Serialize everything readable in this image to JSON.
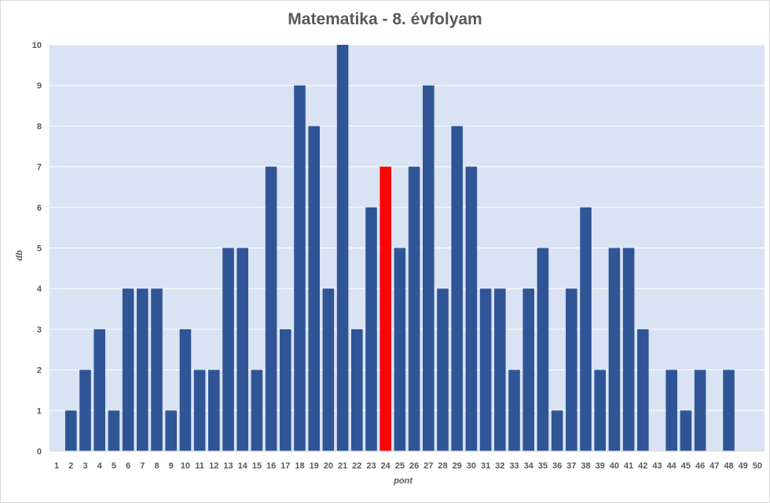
{
  "chart_data": {
    "type": "bar",
    "title": "Matematika - 8. évfolyam",
    "xlabel": "pont",
    "ylabel": "db",
    "categories": [
      "1",
      "2",
      "3",
      "4",
      "5",
      "6",
      "7",
      "8",
      "9",
      "10",
      "11",
      "12",
      "13",
      "14",
      "15",
      "16",
      "17",
      "18",
      "19",
      "20",
      "21",
      "22",
      "23",
      "24",
      "25",
      "26",
      "27",
      "28",
      "29",
      "30",
      "31",
      "32",
      "33",
      "34",
      "35",
      "36",
      "37",
      "38",
      "39",
      "40",
      "41",
      "42",
      "43",
      "44",
      "45",
      "46",
      "47",
      "48",
      "49",
      "50"
    ],
    "values": [
      0,
      1,
      2,
      3,
      1,
      4,
      4,
      4,
      1,
      3,
      2,
      2,
      5,
      5,
      2,
      7,
      3,
      9,
      8,
      4,
      10,
      3,
      6,
      7,
      5,
      7,
      9,
      4,
      8,
      7,
      4,
      4,
      2,
      4,
      5,
      1,
      4,
      6,
      2,
      5,
      5,
      3,
      0,
      2,
      1,
      2,
      0,
      2,
      0,
      0
    ],
    "highlight_category": "24",
    "ylim": [
      0,
      10
    ],
    "yticks": [
      0,
      1,
      2,
      3,
      4,
      5,
      6,
      7,
      8,
      9,
      10
    ],
    "grid": true,
    "legend": "none",
    "colors": {
      "bar": "#2F5597",
      "highlight": "#FF0000",
      "plot_background": "#DAE3F3",
      "gridline": "#FFFFFF"
    }
  }
}
